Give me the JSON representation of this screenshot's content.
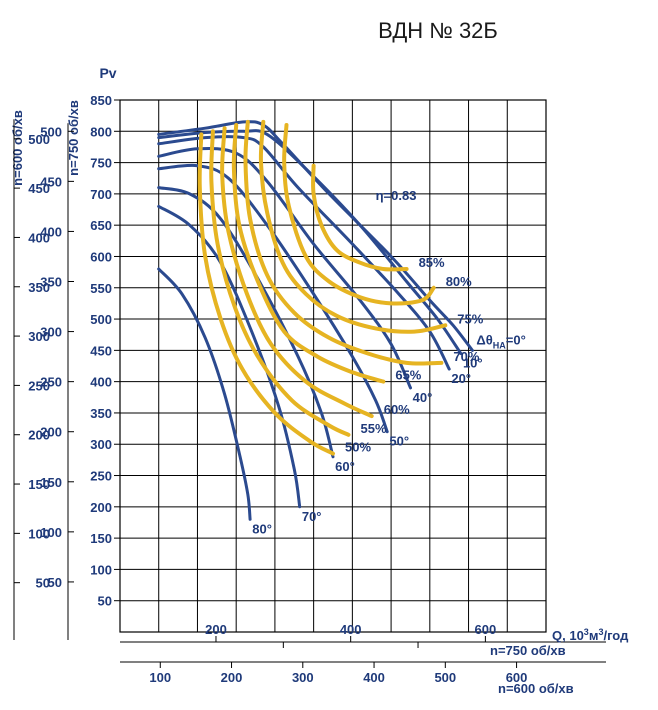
{
  "title": "ВДН № 32Б",
  "y_axis_label": "Pv",
  "left_axis_600_label": "n=600 об/хв",
  "left_axis_750_label": "n=750 об/хв",
  "x_axis_label_q": "Q, 10",
  "x_axis_label_q_sup1": "3",
  "x_axis_label_q_mid": "м",
  "x_axis_label_q_sup2": "3",
  "x_axis_label_q_tail": "/год",
  "bottom_axis_750_label": "n=750 об/хв",
  "bottom_axis_600_label": "n=600 об/хв",
  "colors": {
    "guide_vane_curves": "#2b4a8f",
    "efficiency_curves": "#e6b422",
    "labels": "#1f3a7a"
  },
  "chart_data": {
    "type": "line",
    "title": "ВДН № 32Б",
    "ylabel": "Pv",
    "y_pv_ticks": [
      850,
      800,
      750,
      700,
      650,
      600,
      550,
      500,
      450,
      400,
      350,
      300,
      250,
      200,
      150,
      100,
      50
    ],
    "y_n750_ticks": [
      500,
      450,
      400,
      350,
      300,
      250,
      200,
      150,
      100,
      50
    ],
    "y_n600_ticks": [
      500,
      450,
      400,
      350,
      300,
      250,
      200,
      150,
      100,
      50
    ],
    "x_n750_ticks": [
      200,
      400,
      600
    ],
    "x_n600_ticks": [
      100,
      200,
      300,
      400,
      500,
      600
    ],
    "x_n600_ticks_b": [
      100,
      200,
      300,
      400,
      500,
      600
    ],
    "x_n750_ticks_b": [
      200,
      400,
      600
    ],
    "grid": true,
    "guide_vane_curves": [
      {
        "label": "Δθ",
        "label_sub": "НА",
        "label_tail": "=0°",
        "points": [
          [
            100,
            795
          ],
          [
            160,
            805
          ],
          [
            210,
            815
          ],
          [
            235,
            810
          ],
          [
            260,
            780
          ],
          [
            320,
            700
          ],
          [
            400,
            600
          ],
          [
            450,
            530
          ],
          [
            480,
            490
          ],
          [
            505,
            450
          ]
        ]
      },
      {
        "label": "10°",
        "points": [
          [
            100,
            790
          ],
          [
            160,
            798
          ],
          [
            210,
            800
          ],
          [
            240,
            795
          ],
          [
            290,
            740
          ],
          [
            360,
            650
          ],
          [
            420,
            560
          ],
          [
            460,
            500
          ],
          [
            490,
            445
          ]
        ]
      },
      {
        "label": "20°",
        "points": [
          [
            100,
            780
          ],
          [
            160,
            790
          ],
          [
            210,
            790
          ],
          [
            235,
            775
          ],
          [
            280,
            710
          ],
          [
            350,
            620
          ],
          [
            410,
            540
          ],
          [
            450,
            480
          ],
          [
            475,
            420
          ]
        ]
      },
      {
        "label": "40°",
        "points": [
          [
            100,
            760
          ],
          [
            150,
            772
          ],
          [
            200,
            765
          ],
          [
            240,
            720
          ],
          [
            300,
            620
          ],
          [
            360,
            530
          ],
          [
            400,
            460
          ],
          [
            425,
            390
          ]
        ]
      },
      {
        "label": "50°",
        "points": [
          [
            100,
            740
          ],
          [
            150,
            745
          ],
          [
            190,
            725
          ],
          [
            240,
            650
          ],
          [
            300,
            540
          ],
          [
            350,
            440
          ],
          [
            380,
            370
          ],
          [
            395,
            320
          ]
        ]
      },
      {
        "label": "60°",
        "points": [
          [
            100,
            710
          ],
          [
            140,
            700
          ],
          [
            180,
            660
          ],
          [
            230,
            560
          ],
          [
            280,
            440
          ],
          [
            310,
            350
          ],
          [
            325,
            280
          ]
        ]
      },
      {
        "label": "70°",
        "points": [
          [
            100,
            680
          ],
          [
            140,
            650
          ],
          [
            180,
            590
          ],
          [
            220,
            480
          ],
          [
            255,
            360
          ],
          [
            275,
            260
          ],
          [
            282,
            200
          ]
        ]
      },
      {
        "label": "80°",
        "points": [
          [
            100,
            580
          ],
          [
            130,
            540
          ],
          [
            160,
            470
          ],
          [
            185,
            380
          ],
          [
            205,
            280
          ],
          [
            215,
            220
          ],
          [
            218,
            180
          ]
        ]
      }
    ],
    "efficiency_curves": [
      {
        "label": "85%",
        "points": [
          [
            300,
            745
          ],
          [
            300,
            700
          ],
          [
            310,
            650
          ],
          [
            330,
            610
          ],
          [
            360,
            590
          ],
          [
            390,
            580
          ],
          [
            420,
            580
          ]
        ]
      },
      {
        "label": "80%",
        "points": [
          [
            265,
            810
          ],
          [
            262,
            750
          ],
          [
            268,
            680
          ],
          [
            290,
            600
          ],
          [
            320,
            560
          ],
          [
            360,
            535
          ],
          [
            400,
            525
          ],
          [
            440,
            530
          ],
          [
            455,
            550
          ]
        ]
      },
      {
        "label": "75%",
        "points": [
          [
            235,
            815
          ],
          [
            232,
            750
          ],
          [
            240,
            670
          ],
          [
            260,
            590
          ],
          [
            290,
            540
          ],
          [
            330,
            505
          ],
          [
            380,
            485
          ],
          [
            430,
            480
          ],
          [
            470,
            490
          ]
        ]
      },
      {
        "label": "70%",
        "points": [
          [
            215,
            815
          ],
          [
            212,
            750
          ],
          [
            218,
            660
          ],
          [
            240,
            570
          ],
          [
            275,
            510
          ],
          [
            320,
            470
          ],
          [
            370,
            445
          ],
          [
            420,
            430
          ],
          [
            465,
            430
          ]
        ]
      },
      {
        "label": "65%",
        "points": [
          [
            200,
            810
          ],
          [
            197,
            740
          ],
          [
            204,
            650
          ],
          [
            228,
            560
          ],
          [
            262,
            480
          ],
          [
            305,
            440
          ],
          [
            350,
            415
          ],
          [
            390,
            400
          ]
        ]
      },
      {
        "label": "60%",
        "points": [
          [
            185,
            805
          ],
          [
            182,
            730
          ],
          [
            190,
            640
          ],
          [
            214,
            540
          ],
          [
            245,
            460
          ],
          [
            290,
            400
          ],
          [
            340,
            365
          ],
          [
            375,
            345
          ]
        ]
      },
      {
        "label": "55%",
        "points": [
          [
            170,
            800
          ],
          [
            168,
            720
          ],
          [
            176,
            620
          ],
          [
            198,
            520
          ],
          [
            228,
            440
          ],
          [
            272,
            370
          ],
          [
            320,
            330
          ],
          [
            345,
            315
          ]
        ]
      },
      {
        "label": "50%",
        "points": [
          [
            155,
            795
          ],
          [
            153,
            710
          ],
          [
            160,
            600
          ],
          [
            180,
            500
          ],
          [
            208,
            420
          ],
          [
            250,
            350
          ],
          [
            295,
            305
          ],
          [
            325,
            285
          ]
        ]
      }
    ],
    "annotations": [
      {
        "text": "η=0.83",
        "x": 380,
        "y": 690
      }
    ]
  }
}
